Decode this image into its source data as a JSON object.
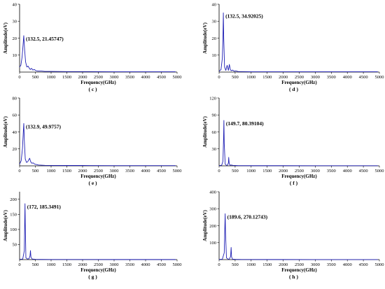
{
  "chart_data": [
    {
      "type": "line",
      "panel": "( c )",
      "xlabel": "Frequency(GHz)",
      "ylabel": "Amplitude(eV)",
      "xlim": [
        0,
        5000
      ],
      "ylim": [
        0,
        40
      ],
      "xticks": [
        0,
        500,
        1000,
        1500,
        2000,
        2500,
        3000,
        3500,
        4000,
        4500,
        5000
      ],
      "yticks": [
        10,
        20,
        30,
        40
      ],
      "annotation": "(132.5, 21.45747)",
      "series": [
        {
          "color": "#1f1fb4",
          "x": [
            0,
            40,
            80,
            110,
            132.5,
            160,
            190,
            230,
            270,
            300,
            340,
            380,
            420,
            470,
            520,
            600,
            700,
            800,
            1000,
            1500,
            2000,
            2500,
            3000,
            3500,
            4000,
            4500,
            4950
          ],
          "y": [
            3,
            4,
            9,
            16,
            21.46,
            13,
            6,
            3,
            3.5,
            2.5,
            1.5,
            2.2,
            1.2,
            1.5,
            0.8,
            0.6,
            0.6,
            0.4,
            0.4,
            0.3,
            0.3,
            0.25,
            0.2,
            0.2,
            0.2,
            0.2,
            0.2
          ]
        }
      ]
    },
    {
      "type": "line",
      "panel": "( d )",
      "xlabel": "Frequency(GHz)",
      "ylabel": "Amplitude(eV)",
      "xlim": [
        0,
        5000
      ],
      "ylim": [
        0,
        40
      ],
      "xticks": [
        0,
        500,
        1000,
        1500,
        2000,
        2500,
        3000,
        3500,
        4000,
        4500,
        5000
      ],
      "yticks": [
        10,
        20,
        30,
        40
      ],
      "annotation": "(132.5, 34.92025)",
      "series": [
        {
          "color": "#1f1fb4",
          "x": [
            0,
            60,
            100,
            120,
            132.5,
            145,
            170,
            210,
            250,
            290,
            320,
            350,
            380,
            420,
            470,
            520,
            600,
            700,
            1000,
            1500,
            2000,
            3000,
            4000,
            4950
          ],
          "y": [
            0.5,
            1.5,
            8,
            20,
            34.92,
            20,
            3,
            1,
            4,
            1,
            4.5,
            1.5,
            0.8,
            1.2,
            0.5,
            0.7,
            0.3,
            0.3,
            0.2,
            0.2,
            0.2,
            0.2,
            0.2,
            0.2
          ]
        }
      ]
    },
    {
      "type": "line",
      "panel": "( e )",
      "xlabel": "Frequency(GHz)",
      "ylabel": "Amplitude(eV)",
      "xlim": [
        0,
        5000
      ],
      "ylim": [
        0,
        80
      ],
      "xticks": [
        0,
        500,
        1000,
        1500,
        2000,
        2500,
        3000,
        3500,
        4000,
        4500,
        5000
      ],
      "yticks": [
        20,
        40,
        60,
        80
      ],
      "annotation": "(132.9, 49.9757)",
      "series": [
        {
          "color": "#1f1fb4",
          "x": [
            0,
            50,
            90,
            115,
            132.9,
            150,
            180,
            220,
            260,
            290,
            320,
            350,
            390,
            430,
            480,
            540,
            600,
            700,
            800,
            1000,
            1500,
            2000,
            3000,
            4000,
            4950
          ],
          "y": [
            2,
            6,
            20,
            38,
            49.98,
            30,
            8,
            4,
            5,
            7,
            9,
            5,
            3,
            3.5,
            2,
            1.5,
            1,
            0.8,
            0.6,
            0.5,
            0.4,
            0.4,
            0.3,
            0.3,
            0.3
          ]
        }
      ]
    },
    {
      "type": "line",
      "panel": "( f )",
      "xlabel": "Frequency(GHz)",
      "ylabel": "Amplitude(eV)",
      "xlim": [
        0,
        5000
      ],
      "ylim": [
        0,
        120
      ],
      "xticks": [
        0,
        500,
        1000,
        1500,
        2000,
        2500,
        3000,
        3500,
        4000,
        4500,
        5000
      ],
      "yticks": [
        30,
        60,
        90,
        120
      ],
      "annotation": "(149.7, 80.39104)",
      "series": [
        {
          "color": "#1f1fb4",
          "x": [
            0,
            80,
            120,
            140,
            149.7,
            160,
            190,
            230,
            260,
            290,
            300,
            315,
            340,
            380,
            430,
            500,
            600,
            1000,
            2000,
            3000,
            4000,
            4950
          ],
          "y": [
            0.5,
            1,
            8,
            50,
            80.39,
            40,
            3,
            1,
            1,
            5,
            15,
            4,
            1,
            1.5,
            0.8,
            0.6,
            0.4,
            0.3,
            0.3,
            0.2,
            0.2,
            0.2
          ]
        }
      ]
    },
    {
      "type": "line",
      "panel": "( g )",
      "xlabel": "Frequency(GHz)",
      "ylabel": "Amplitude(eV)",
      "xlim": [
        0,
        5000
      ],
      "ylim": [
        0,
        225
      ],
      "xticks": [
        0,
        500,
        1000,
        1500,
        2000,
        2500,
        3000,
        3500,
        4000,
        4500,
        5000
      ],
      "yticks": [
        50,
        100,
        150,
        200
      ],
      "annotation": "(172, 185.3491)",
      "series": [
        {
          "color": "#1f1fb4",
          "x": [
            0,
            100,
            150,
            165,
            172,
            180,
            200,
            250,
            300,
            330,
            345,
            360,
            400,
            450,
            500,
            600,
            700,
            1000,
            2000,
            3000,
            4000,
            4950
          ],
          "y": [
            1,
            2,
            30,
            140,
            185.35,
            120,
            6,
            2,
            3,
            12,
            30,
            8,
            2,
            1.5,
            1,
            0.8,
            0.6,
            0.5,
            0.4,
            0.3,
            0.3,
            0.3
          ]
        }
      ]
    },
    {
      "type": "line",
      "panel": "( h )",
      "xlabel": "Frequency(GHz)",
      "ylabel": "Amplitude(eV)",
      "xlim": [
        0,
        5000
      ],
      "ylim": [
        0,
        400
      ],
      "xticks": [
        0,
        500,
        1000,
        1500,
        2000,
        2500,
        3000,
        3500,
        4000,
        4500,
        5000
      ],
      "yticks": [
        100,
        200,
        300,
        400
      ],
      "annotation": "(189.6, 270.12743)",
      "series": [
        {
          "color": "#1f1fb4",
          "x": [
            0,
            100,
            160,
            180,
            189.6,
            200,
            230,
            280,
            320,
            360,
            375,
            390,
            420,
            470,
            520,
            600,
            700,
            1000,
            2000,
            3000,
            4000,
            4950
          ],
          "y": [
            1,
            2,
            40,
            200,
            270.13,
            160,
            10,
            3,
            3,
            20,
            72,
            15,
            3,
            2,
            1.5,
            1,
            0.8,
            0.6,
            0.5,
            0.4,
            0.4,
            0.4
          ]
        }
      ]
    }
  ]
}
